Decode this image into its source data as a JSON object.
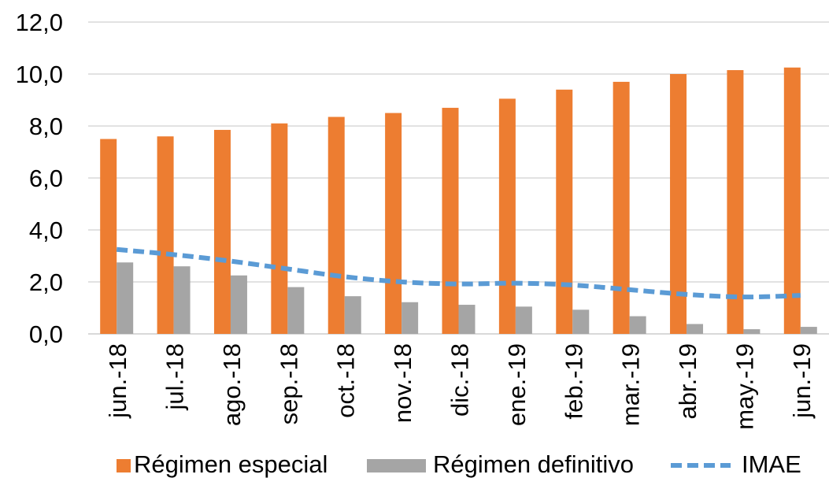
{
  "chart_data": {
    "type": "bar",
    "categories": [
      "jun.-18",
      "jul.-18",
      "ago.-18",
      "sep.-18",
      "oct.-18",
      "nov.-18",
      "dic.-18",
      "ene.-19",
      "feb.-19",
      "mar.-19",
      "abr.-19",
      "may.-19",
      "jun.-19"
    ],
    "series": [
      {
        "name": "Régimen especial",
        "kind": "bar",
        "color": "#ED7D31",
        "values": [
          7.5,
          7.6,
          7.85,
          8.1,
          8.35,
          8.5,
          8.7,
          9.05,
          9.4,
          9.7,
          10.0,
          10.15,
          10.25
        ]
      },
      {
        "name": "Régimen definitivo",
        "kind": "bar",
        "color": "#A5A5A5",
        "values": [
          2.75,
          2.6,
          2.25,
          1.8,
          1.45,
          1.22,
          1.12,
          1.05,
          0.93,
          0.68,
          0.38,
          0.18,
          0.27
        ]
      },
      {
        "name": "IMAE",
        "kind": "line",
        "style": "dashed",
        "color": "#5B9BD5",
        "values": [
          3.25,
          3.05,
          2.8,
          2.5,
          2.2,
          2.0,
          1.92,
          1.95,
          1.88,
          1.7,
          1.52,
          1.42,
          1.48
        ]
      }
    ],
    "yticks": [
      "0,0",
      "2,0",
      "4,0",
      "6,0",
      "8,0",
      "10,0",
      "12,0"
    ],
    "ylim": [
      0,
      12
    ],
    "grid": true,
    "legend_position": "bottom"
  }
}
